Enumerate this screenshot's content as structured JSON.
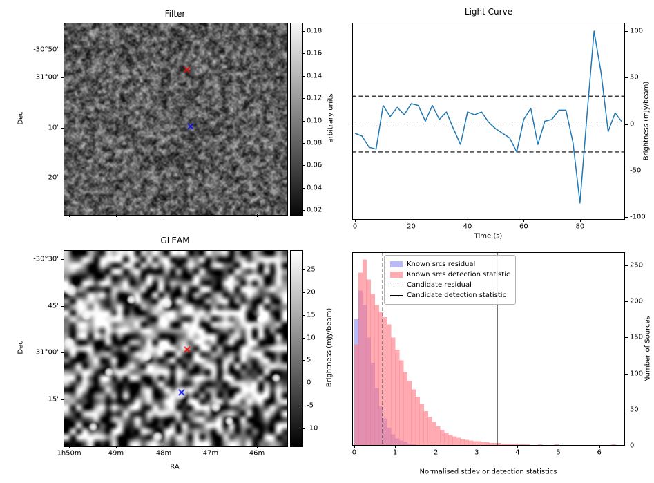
{
  "chart_data": [
    {
      "type": "heatmap",
      "title": "Filter",
      "ylabel": "Dec",
      "yticklabels": [
        "-30°50'",
        "-31°00'",
        "10'",
        "20'"
      ],
      "colorbar_label": "arbitrary units",
      "colorbar_ticklabels": [
        "0.18",
        "0.16",
        "0.14",
        "0.12",
        "0.10",
        "0.08",
        "0.06",
        "0.04",
        "0.02"
      ],
      "colorbar_range": [
        0.02,
        0.18
      ],
      "image_description": "grayscale random noise field",
      "markers": [
        {
          "symbol": "x",
          "color": "#ff0000",
          "fx": 0.551,
          "fy": 0.242
        },
        {
          "symbol": "x",
          "color": "#0000ff",
          "fx": 0.566,
          "fy": 0.538
        }
      ]
    },
    {
      "type": "line",
      "title": "Light Curve",
      "xlabel": "Time (s)",
      "ylabel": "Brightness (mJy/beam)",
      "line_color": "#1f77b4",
      "x": [
        0,
        2.5,
        5,
        7.5,
        10,
        12.5,
        15,
        17.5,
        20,
        22.5,
        25,
        27.5,
        30,
        32.5,
        35,
        37.5,
        40,
        42.5,
        45,
        47.5,
        50,
        52.5,
        55,
        57.5,
        60,
        62.5,
        65,
        67.5,
        70,
        72.5,
        75,
        77.5,
        80,
        82.5,
        85,
        87.5,
        90,
        92.5,
        95
      ],
      "y": [
        -10,
        -13,
        -25,
        -27,
        20,
        8,
        18,
        10,
        22,
        20,
        3,
        20,
        5,
        13,
        -5,
        -22,
        13,
        10,
        13,
        2,
        -5,
        -10,
        -15,
        -30,
        5,
        17,
        -22,
        3,
        5,
        15,
        15,
        -20,
        -85,
        10,
        100,
        55,
        -8,
        12,
        2
      ],
      "hlines": [
        30,
        0,
        -30
      ],
      "hline_style": "dashed",
      "xlim": [
        -1,
        96
      ],
      "ylim": [
        -103,
        109
      ],
      "xticks": [
        0,
        20,
        40,
        60,
        80
      ],
      "yticks": [
        100,
        50,
        0,
        -50,
        -100
      ]
    },
    {
      "type": "heatmap",
      "title": "GLEAM",
      "xlabel": "RA",
      "ylabel": "Dec",
      "xticklabels": [
        "1h50m",
        "49m",
        "48m",
        "47m",
        "46m"
      ],
      "yticklabels": [
        "-30°30'",
        "45'",
        "-31°00'",
        "15'"
      ],
      "colorbar_label": "Brightness (mJy/beam)",
      "colorbar_ticklabels": [
        "25",
        "20",
        "15",
        "10",
        "5",
        "0",
        "-5",
        "-10"
      ],
      "colorbar_range": [
        -10,
        25
      ],
      "image_description": "grayscale sky map with bright point sources",
      "markers": [
        {
          "symbol": "x",
          "color": "#ff0000",
          "fx": 0.551,
          "fy": 0.505
        },
        {
          "symbol": "x",
          "color": "#0000ff",
          "fx": 0.526,
          "fy": 0.724
        }
      ]
    },
    {
      "type": "bar",
      "subtype": "histogram",
      "xlabel": "Normalised stdev or detection statistics",
      "ylabel": "Number of Sources",
      "bin_start": 0,
      "bin_width": 0.1,
      "series": [
        {
          "name": "Known srcs residual",
          "color": "rgba(115,115,245,0.5)",
          "values": [
            175,
            215,
            195,
            150,
            115,
            80,
            55,
            38,
            25,
            16,
            10,
            7,
            5,
            3,
            2,
            1,
            1,
            0,
            0,
            0
          ]
        },
        {
          "name": "Known srcs detection statistic",
          "color": "rgba(255,115,125,0.6)",
          "values": [
            140,
            240,
            258,
            230,
            210,
            195,
            185,
            178,
            168,
            150,
            133,
            118,
            102,
            90,
            78,
            68,
            58,
            48,
            40,
            33,
            27,
            22,
            18,
            15,
            13,
            11,
            9,
            8,
            7,
            6,
            6,
            5,
            5,
            4,
            4,
            4,
            3,
            3,
            3,
            2,
            2,
            2,
            2,
            1,
            1,
            2,
            1,
            1,
            1,
            2,
            1,
            1,
            0,
            1,
            1,
            0,
            1,
            0,
            1,
            0,
            1,
            0,
            0,
            2
          ]
        }
      ],
      "vlines": [
        {
          "name": "Candidate residual",
          "x": 0.7,
          "style": "dashed",
          "color": "#000000"
        },
        {
          "name": "Candidate detection statistic",
          "x": 3.5,
          "style": "solid",
          "color": "#000000"
        }
      ],
      "legend_items": [
        {
          "swatch": "patch",
          "color": "rgba(115,115,245,0.5)",
          "label": "Known srcs residual"
        },
        {
          "swatch": "patch",
          "color": "rgba(255,115,125,0.6)",
          "label": "Known srcs detection statistic"
        },
        {
          "swatch": "dashed-line",
          "label": "Candidate residual"
        },
        {
          "swatch": "solid-line",
          "label": "Candidate detection statistic"
        }
      ],
      "xlim": [
        -0.05,
        6.63
      ],
      "ylim": [
        0,
        268
      ],
      "xticks": [
        0,
        1,
        2,
        3,
        4,
        5,
        6
      ],
      "yticks": [
        0,
        50,
        100,
        150,
        200,
        250
      ]
    }
  ]
}
